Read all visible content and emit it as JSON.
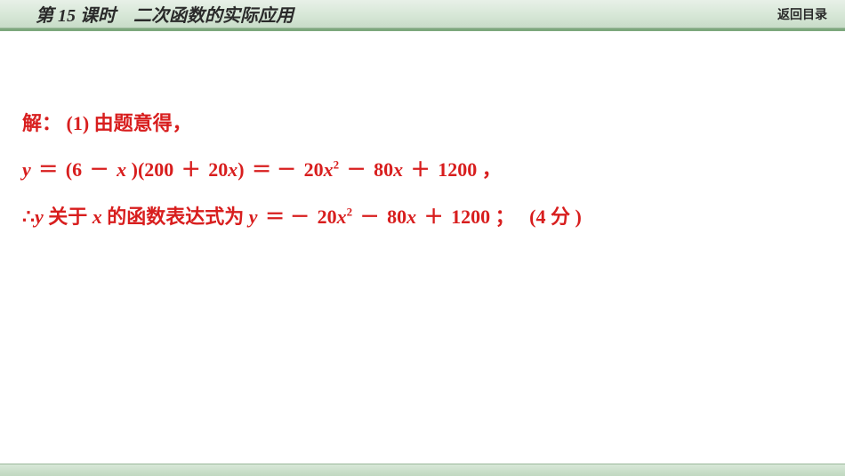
{
  "header": {
    "lesson_prefix": "第",
    "lesson_number": "15",
    "lesson_suffix": "课时",
    "title": "二次函数的实际应用",
    "return_label": "返回目录"
  },
  "content": {
    "solution_label": "解：",
    "part_label": "(1)",
    "given_text": "由题意得，",
    "eq_lhs_var": "y",
    "eq_equals": "＝",
    "eq_factor1_a": "(6",
    "eq_minus": "－",
    "eq_factor1_b_var": "x",
    "eq_factor1_close": ")(200",
    "eq_plus": "＋",
    "eq_factor2_coef": "20",
    "eq_factor2_var": "x",
    "eq_factor2_close": ")",
    "eq_rhs_neg": "－",
    "eq_rhs_a_coef": "20",
    "eq_rhs_a_var": "x",
    "eq_rhs_a_exp": "2",
    "eq_rhs_b_coef": "80",
    "eq_rhs_b_var": "x",
    "eq_rhs_c": "1200",
    "eq_comma": "，",
    "therefore": "∴",
    "conclusion_y": "y",
    "conclusion_mid1": "关于",
    "conclusion_x": "x",
    "conclusion_mid2": "的函数表达式为",
    "conclusion_y2": "y",
    "conclusion_semicolon": "；",
    "points_open": "(4",
    "points_unit": "分",
    "points_close": ")"
  },
  "styles": {
    "text_color": "#d81e1e",
    "header_bg_top": "#e8f0e8",
    "header_bg_bottom": "#c8dcc8",
    "divider_color": "#7da87d",
    "font_size_content": 22
  }
}
